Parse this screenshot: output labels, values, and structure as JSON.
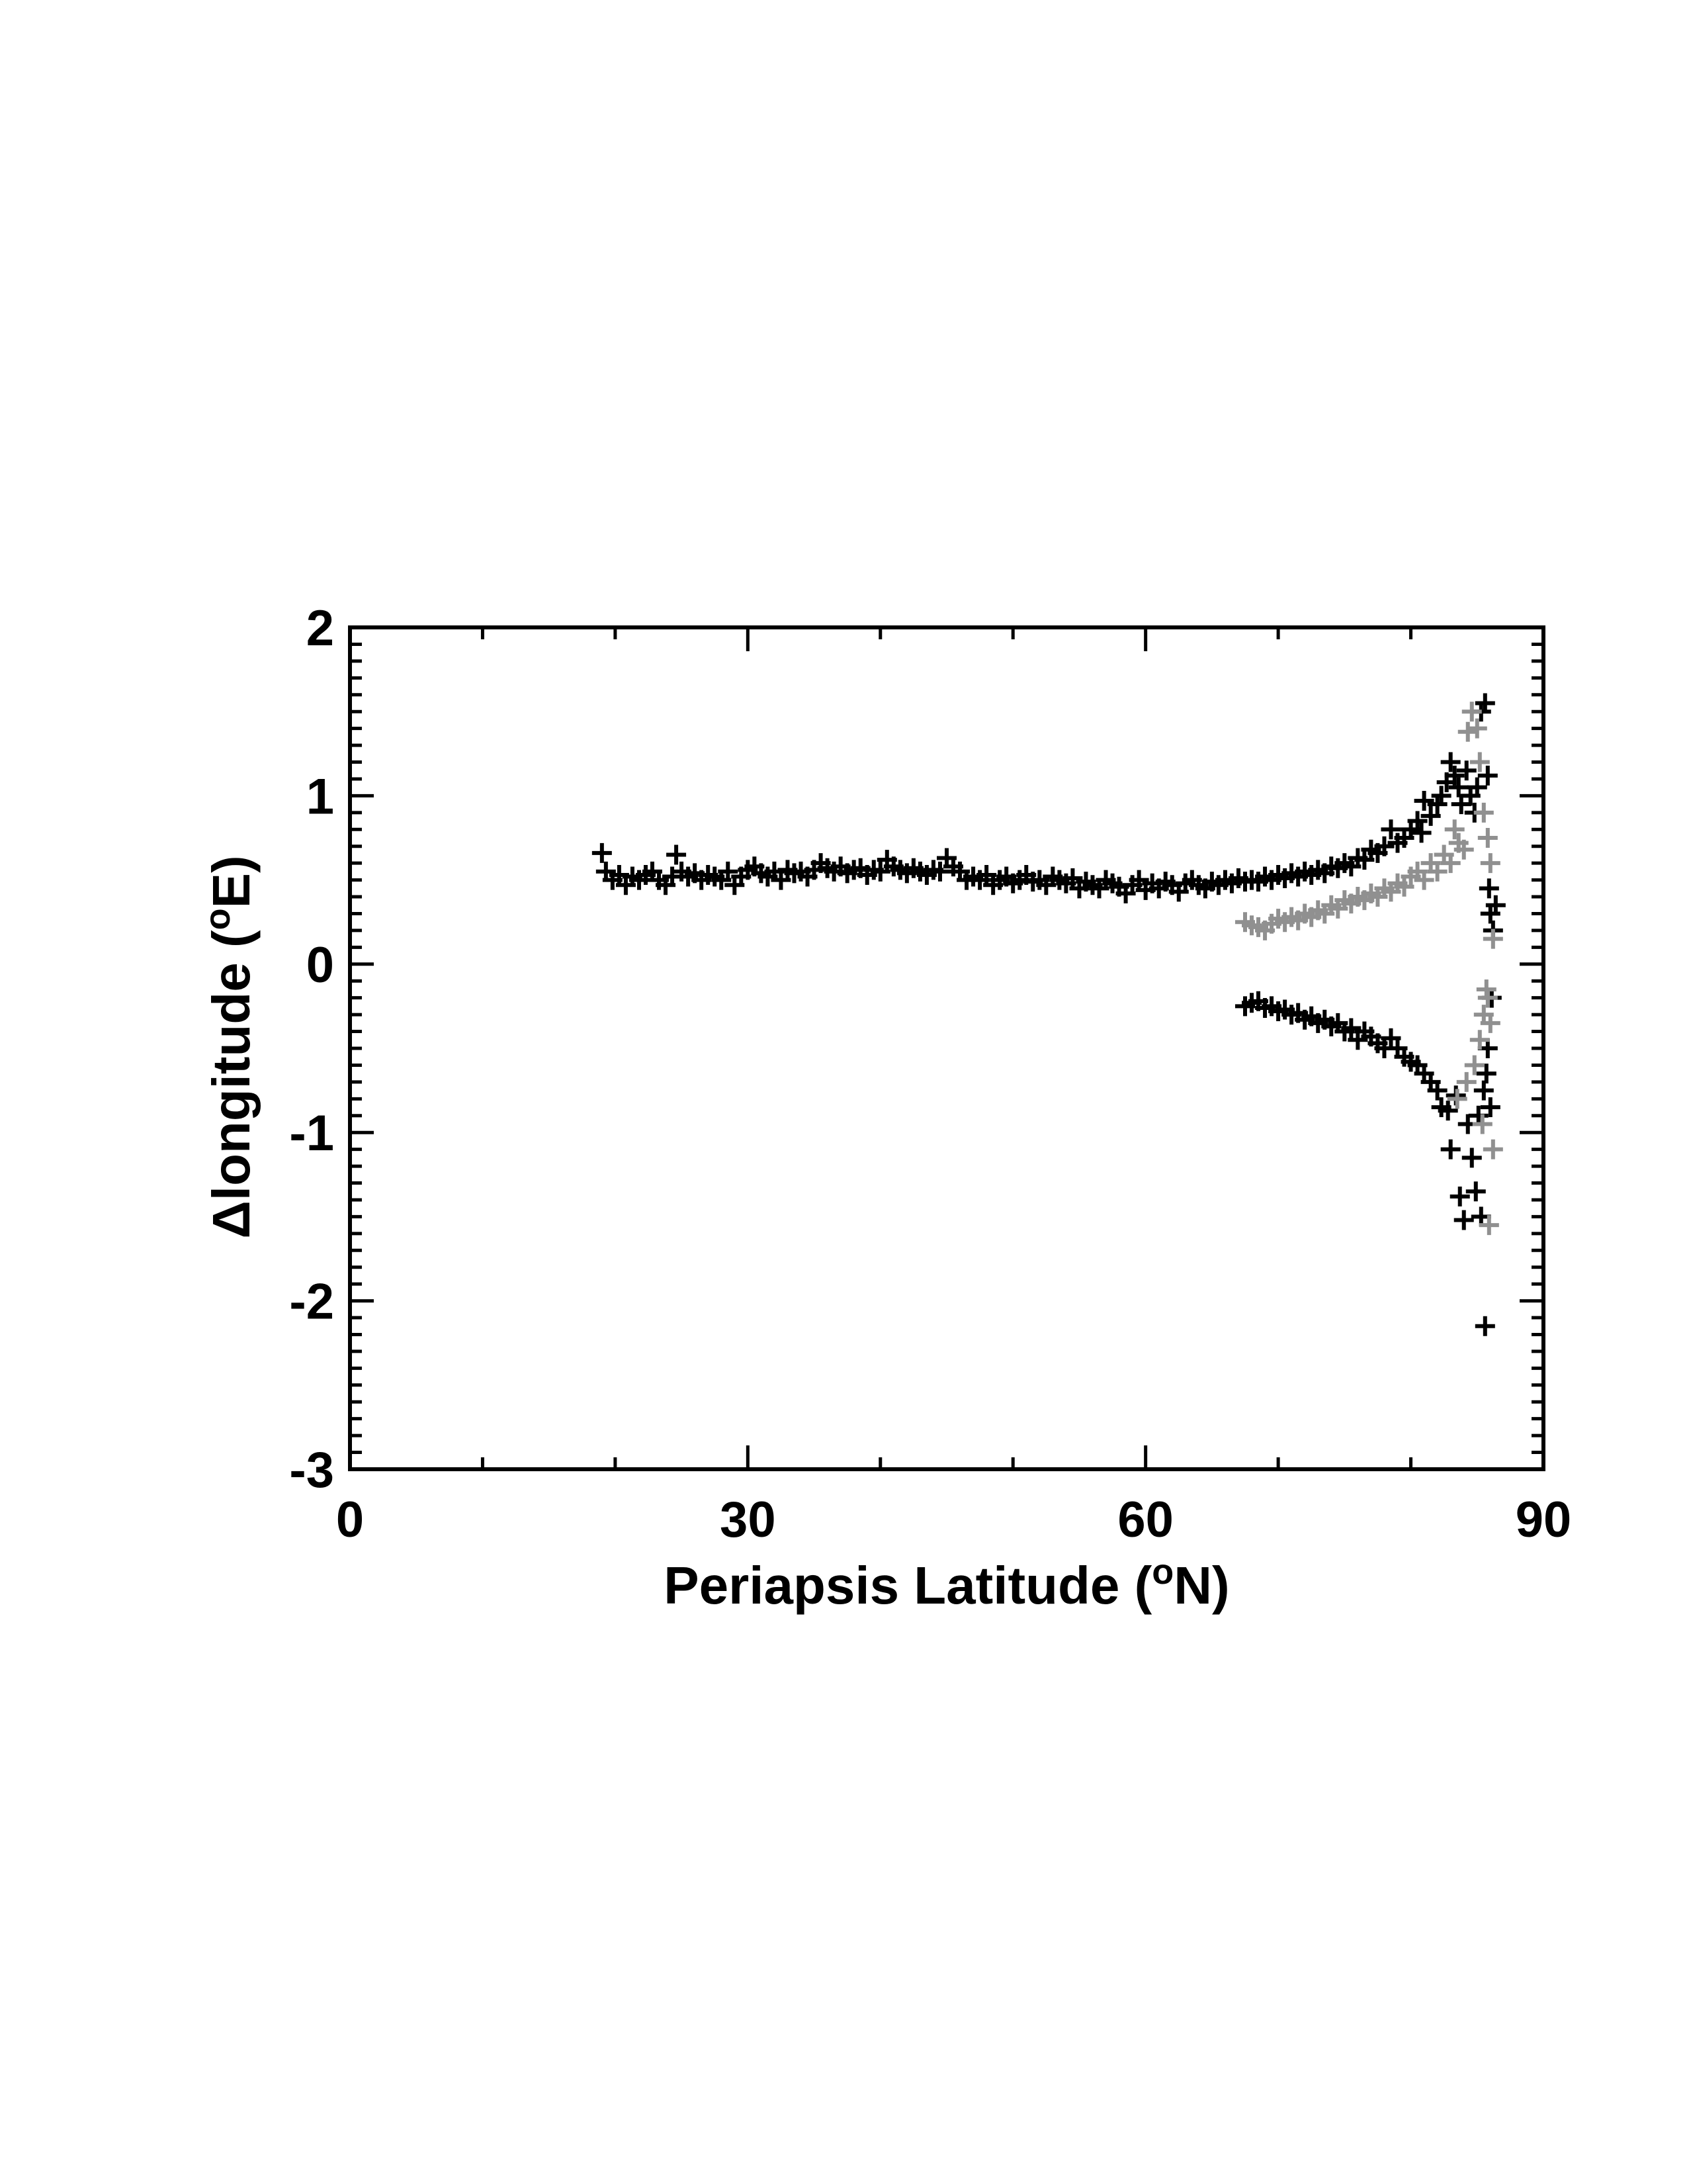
{
  "chart_data": {
    "type": "scatter",
    "title": "",
    "xlabel": "Periapsis Latitude (",
    "xlabel_sup": "o",
    "xlabel_end": "N)",
    "ylabel": "Δlongitude (",
    "ylabel_sup": "o",
    "ylabel_end": "E)",
    "xlim": [
      0,
      90
    ],
    "ylim": [
      -3,
      2
    ],
    "xticks": [
      0,
      30,
      60,
      90
    ],
    "xtick_labels": [
      "0",
      "30",
      "60",
      "90"
    ],
    "yticks": [
      2,
      1,
      0,
      -1,
      -2,
      -3
    ],
    "ytick_labels": [
      "2",
      "1",
      "0",
      "-1",
      "-2",
      "-3"
    ],
    "grid": false,
    "marker": "+",
    "series": [
      {
        "color": "#000000",
        "points": [
          [
            19.0,
            0.66
          ],
          [
            19.3,
            0.55
          ],
          [
            19.8,
            0.5
          ],
          [
            20.3,
            0.53
          ],
          [
            20.8,
            0.47
          ],
          [
            21.3,
            0.52
          ],
          [
            21.8,
            0.5
          ],
          [
            22.3,
            0.53
          ],
          [
            22.8,
            0.55
          ],
          [
            23.3,
            0.5
          ],
          [
            23.8,
            0.47
          ],
          [
            24.3,
            0.52
          ],
          [
            24.6,
            0.65
          ],
          [
            25.0,
            0.55
          ],
          [
            25.5,
            0.52
          ],
          [
            26.0,
            0.54
          ],
          [
            26.5,
            0.5
          ],
          [
            27.0,
            0.53
          ],
          [
            27.5,
            0.52
          ],
          [
            28.0,
            0.5
          ],
          [
            28.5,
            0.55
          ],
          [
            29.0,
            0.47
          ],
          [
            29.5,
            0.52
          ],
          [
            30.0,
            0.56
          ],
          [
            30.5,
            0.58
          ],
          [
            31.0,
            0.54
          ],
          [
            31.5,
            0.52
          ],
          [
            32.0,
            0.55
          ],
          [
            32.5,
            0.5
          ],
          [
            33.0,
            0.56
          ],
          [
            33.5,
            0.54
          ],
          [
            34.0,
            0.55
          ],
          [
            34.5,
            0.52
          ],
          [
            35.0,
            0.56
          ],
          [
            35.5,
            0.6
          ],
          [
            36.0,
            0.57
          ],
          [
            36.5,
            0.55
          ],
          [
            37.0,
            0.58
          ],
          [
            37.5,
            0.54
          ],
          [
            38.0,
            0.56
          ],
          [
            38.5,
            0.57
          ],
          [
            39.0,
            0.53
          ],
          [
            39.5,
            0.56
          ],
          [
            40.0,
            0.55
          ],
          [
            40.5,
            0.62
          ],
          [
            41.0,
            0.58
          ],
          [
            41.5,
            0.56
          ],
          [
            42.0,
            0.54
          ],
          [
            42.5,
            0.57
          ],
          [
            43.0,
            0.55
          ],
          [
            43.5,
            0.53
          ],
          [
            44.0,
            0.56
          ],
          [
            44.5,
            0.55
          ],
          [
            45.0,
            0.63
          ],
          [
            45.5,
            0.58
          ],
          [
            46.0,
            0.55
          ],
          [
            46.5,
            0.5
          ],
          [
            47.0,
            0.52
          ],
          [
            47.5,
            0.5
          ],
          [
            48.0,
            0.53
          ],
          [
            48.5,
            0.47
          ],
          [
            49.0,
            0.5
          ],
          [
            49.5,
            0.52
          ],
          [
            50.0,
            0.48
          ],
          [
            50.5,
            0.5
          ],
          [
            51.0,
            0.53
          ],
          [
            51.5,
            0.49
          ],
          [
            52.0,
            0.5
          ],
          [
            52.5,
            0.47
          ],
          [
            53.0,
            0.52
          ],
          [
            53.5,
            0.5
          ],
          [
            54.0,
            0.48
          ],
          [
            54.5,
            0.51
          ],
          [
            55.0,
            0.45
          ],
          [
            55.5,
            0.49
          ],
          [
            56.0,
            0.47
          ],
          [
            56.5,
            0.45
          ],
          [
            57.0,
            0.5
          ],
          [
            57.5,
            0.48
          ],
          [
            58.0,
            0.46
          ],
          [
            58.5,
            0.42
          ],
          [
            59.0,
            0.47
          ],
          [
            59.5,
            0.5
          ],
          [
            60.0,
            0.44
          ],
          [
            60.5,
            0.48
          ],
          [
            61.0,
            0.45
          ],
          [
            61.5,
            0.49
          ],
          [
            62.0,
            0.47
          ],
          [
            62.5,
            0.43
          ],
          [
            63.0,
            0.48
          ],
          [
            63.5,
            0.5
          ],
          [
            64.0,
            0.47
          ],
          [
            64.5,
            0.45
          ],
          [
            65.0,
            0.49
          ],
          [
            65.5,
            0.47
          ],
          [
            66.0,
            0.5
          ],
          [
            66.5,
            0.48
          ],
          [
            67.0,
            0.51
          ],
          [
            67.5,
            0.49
          ],
          [
            68.0,
            0.5
          ],
          [
            68.5,
            0.49
          ],
          [
            69.0,
            0.52
          ],
          [
            69.5,
            0.5
          ],
          [
            70.0,
            0.53
          ],
          [
            70.5,
            0.51
          ],
          [
            71.0,
            0.54
          ],
          [
            71.5,
            0.52
          ],
          [
            72.0,
            0.55
          ],
          [
            72.5,
            0.53
          ],
          [
            73.0,
            0.56
          ],
          [
            73.5,
            0.54
          ],
          [
            74.0,
            0.58
          ],
          [
            74.5,
            0.57
          ],
          [
            75.0,
            0.6
          ],
          [
            75.5,
            0.58
          ],
          [
            76.0,
            0.63
          ],
          [
            76.5,
            0.62
          ],
          [
            77.0,
            0.68
          ],
          [
            77.5,
            0.66
          ],
          [
            78.0,
            0.7
          ],
          [
            78.5,
            0.8
          ],
          [
            79.0,
            0.72
          ],
          [
            79.5,
            0.75
          ],
          [
            80.0,
            0.8
          ],
          [
            80.5,
            0.85
          ],
          [
            80.8,
            0.78
          ],
          [
            81.0,
            0.97
          ],
          [
            81.5,
            0.88
          ],
          [
            82.0,
            0.95
          ],
          [
            82.3,
            1.0
          ],
          [
            82.7,
            1.08
          ],
          [
            83.0,
            1.2
          ],
          [
            83.3,
            1.12
          ],
          [
            83.6,
            1.05
          ],
          [
            83.8,
            0.95
          ],
          [
            84.2,
            1.15
          ],
          [
            84.5,
            1.0
          ],
          [
            84.8,
            0.9
          ],
          [
            85.0,
            1.05
          ],
          [
            85.3,
            1.5
          ],
          [
            85.6,
            1.55
          ],
          [
            85.8,
            1.12
          ],
          [
            85.9,
            0.45
          ],
          [
            86.0,
            0.3
          ],
          [
            86.2,
            0.2
          ],
          [
            86.4,
            0.35
          ],
          [
            67.5,
            -0.25
          ],
          [
            68.0,
            -0.23
          ],
          [
            68.5,
            -0.22
          ],
          [
            69.0,
            -0.26
          ],
          [
            69.5,
            -0.25
          ],
          [
            70.0,
            -0.28
          ],
          [
            70.5,
            -0.27
          ],
          [
            71.0,
            -0.3
          ],
          [
            71.5,
            -0.29
          ],
          [
            72.0,
            -0.33
          ],
          [
            72.5,
            -0.31
          ],
          [
            73.0,
            -0.35
          ],
          [
            73.5,
            -0.33
          ],
          [
            74.0,
            -0.37
          ],
          [
            74.5,
            -0.35
          ],
          [
            75.0,
            -0.4
          ],
          [
            75.5,
            -0.38
          ],
          [
            76.0,
            -0.45
          ],
          [
            76.5,
            -0.4
          ],
          [
            77.0,
            -0.43
          ],
          [
            77.5,
            -0.47
          ],
          [
            78.0,
            -0.5
          ],
          [
            78.5,
            -0.44
          ],
          [
            79.0,
            -0.5
          ],
          [
            79.5,
            -0.55
          ],
          [
            80.0,
            -0.58
          ],
          [
            80.5,
            -0.6
          ],
          [
            81.0,
            -0.65
          ],
          [
            81.5,
            -0.7
          ],
          [
            82.0,
            -0.75
          ],
          [
            82.3,
            -0.85
          ],
          [
            82.8,
            -0.87
          ],
          [
            83.0,
            -1.1
          ],
          [
            83.4,
            -0.78
          ],
          [
            83.7,
            -1.38
          ],
          [
            84.0,
            -1.52
          ],
          [
            84.3,
            -0.95
          ],
          [
            84.6,
            -1.15
          ],
          [
            84.9,
            -1.35
          ],
          [
            85.1,
            -0.9
          ],
          [
            85.3,
            -1.5
          ],
          [
            85.5,
            -0.75
          ],
          [
            85.7,
            -0.65
          ],
          [
            85.8,
            -0.5
          ],
          [
            86.0,
            -0.85
          ],
          [
            86.1,
            -0.2
          ],
          [
            85.6,
            -2.15
          ]
        ]
      },
      {
        "color": "#909090",
        "points": [
          [
            67.5,
            0.25
          ],
          [
            68.0,
            0.23
          ],
          [
            68.5,
            0.22
          ],
          [
            69.0,
            0.2
          ],
          [
            69.5,
            0.24
          ],
          [
            70.0,
            0.27
          ],
          [
            70.5,
            0.25
          ],
          [
            71.0,
            0.28
          ],
          [
            71.5,
            0.26
          ],
          [
            72.0,
            0.3
          ],
          [
            72.5,
            0.28
          ],
          [
            73.0,
            0.32
          ],
          [
            73.5,
            0.3
          ],
          [
            74.0,
            0.35
          ],
          [
            74.5,
            0.33
          ],
          [
            75.0,
            0.38
          ],
          [
            75.5,
            0.36
          ],
          [
            76.0,
            0.4
          ],
          [
            76.5,
            0.38
          ],
          [
            77.0,
            0.42
          ],
          [
            77.5,
            0.4
          ],
          [
            78.0,
            0.45
          ],
          [
            78.5,
            0.43
          ],
          [
            79.0,
            0.48
          ],
          [
            79.5,
            0.46
          ],
          [
            80.0,
            0.52
          ],
          [
            80.5,
            0.55
          ],
          [
            81.0,
            0.5
          ],
          [
            81.5,
            0.6
          ],
          [
            82.0,
            0.55
          ],
          [
            82.5,
            0.65
          ],
          [
            83.0,
            0.6
          ],
          [
            83.3,
            0.8
          ],
          [
            83.6,
            0.72
          ],
          [
            84.0,
            0.68
          ],
          [
            84.3,
            1.38
          ],
          [
            84.6,
            1.5
          ],
          [
            85.0,
            1.4
          ],
          [
            85.2,
            1.2
          ],
          [
            85.5,
            0.9
          ],
          [
            85.8,
            0.75
          ],
          [
            86.0,
            0.6
          ],
          [
            86.2,
            0.15
          ],
          [
            83.5,
            -0.8
          ],
          [
            84.2,
            -0.7
          ],
          [
            84.8,
            -0.6
          ],
          [
            85.2,
            -0.45
          ],
          [
            85.5,
            -0.3
          ],
          [
            85.8,
            -0.2
          ],
          [
            86.0,
            -0.35
          ],
          [
            86.2,
            -1.1
          ],
          [
            85.9,
            -1.55
          ],
          [
            85.4,
            -0.95
          ],
          [
            85.7,
            -0.15
          ]
        ]
      }
    ]
  }
}
